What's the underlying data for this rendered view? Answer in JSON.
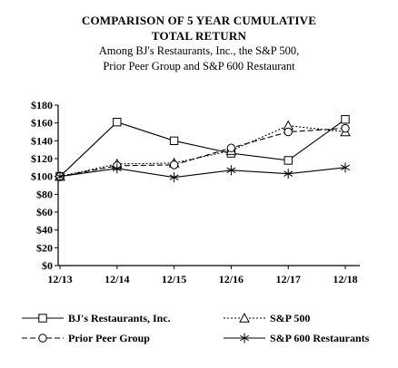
{
  "chart_data": {
    "type": "line",
    "title_lines": [
      "COMPARISON  OF 5 YEAR  CUMULATIVE",
      "TOTAL  RETURN"
    ],
    "subtitle_lines": [
      "Among BJ's Restaurants, Inc., the S&P 500,",
      "Prior Peer Group  and S&P 600 Restaurant"
    ],
    "categories": [
      "12/13",
      "12/14",
      "12/15",
      "12/16",
      "12/17",
      "12/18"
    ],
    "ylim": [
      0,
      180
    ],
    "yticks": [
      0,
      20,
      40,
      60,
      80,
      100,
      120,
      140,
      160,
      180
    ],
    "ytick_labels": [
      "$0",
      "$20",
      "$40",
      "$60",
      "$80",
      "$100",
      "$120",
      "$140",
      "$160",
      "$180"
    ],
    "xlabel": "",
    "ylabel": "",
    "grid": false,
    "legend_position": "bottom",
    "series": [
      {
        "name": "BJ's Restaurants, Inc.",
        "values": [
          100,
          161,
          140,
          126,
          118,
          164
        ],
        "marker": "square",
        "dash": "solid"
      },
      {
        "name": "S&P 500",
        "values": [
          100,
          114,
          115,
          129,
          157,
          150
        ],
        "marker": "triangle",
        "dash": "dotted"
      },
      {
        "name": "Prior Peer Group",
        "values": [
          100,
          112,
          113,
          132,
          150,
          154
        ],
        "marker": "circle",
        "dash": "dashed"
      },
      {
        "name": "S&P 600 Restaurants",
        "values": [
          100,
          109,
          99,
          107,
          103,
          110
        ],
        "marker": "star",
        "dash": "solid"
      }
    ]
  }
}
